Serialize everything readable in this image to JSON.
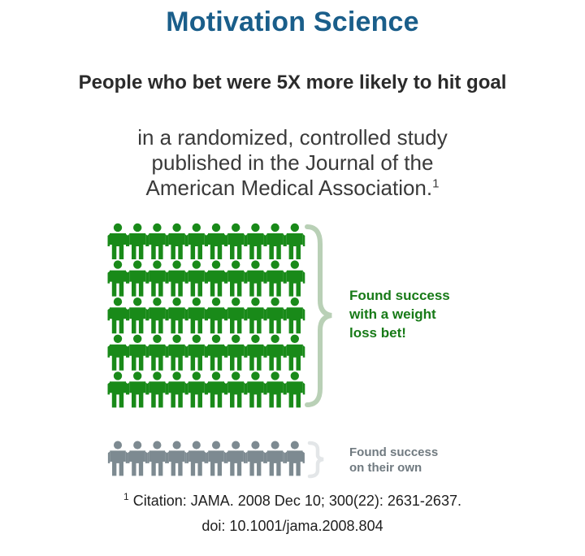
{
  "header": {
    "title": "Motivation Science",
    "subtitle": "People who bet were 5X more likely to hit goal",
    "study_line1": "in a randomized, controlled study",
    "study_line2": "published in the Journal of the",
    "study_line3": "American Medical Association.",
    "study_footnote_mark": "1"
  },
  "chart_data": {
    "type": "pictograph",
    "series": [
      {
        "name": "Found success with a weight loss bet!",
        "icon": "person-icon",
        "count": 50,
        "color": "#198a19"
      },
      {
        "name": "Found success on their own",
        "icon": "person-icon",
        "count": 10,
        "color": "#7d8a91"
      }
    ]
  },
  "labels": {
    "bet_line1": "Found success",
    "bet_line2": "with a weight",
    "bet_line3": "loss bet!",
    "own_line1": "Found success",
    "own_line2": "on their own"
  },
  "citation": {
    "mark": "1",
    "line1": "Citation: JAMA. 2008 Dec 10; 300(22): 2631-2637.",
    "line2": "doi: 10.1001/jama.2008.804"
  },
  "colors": {
    "title": "#1a5e8a",
    "bet_group": "#198a19",
    "own_group": "#7d8a91",
    "brace_green": "#b9d0b6",
    "brace_grey": "#e3e6e8"
  }
}
